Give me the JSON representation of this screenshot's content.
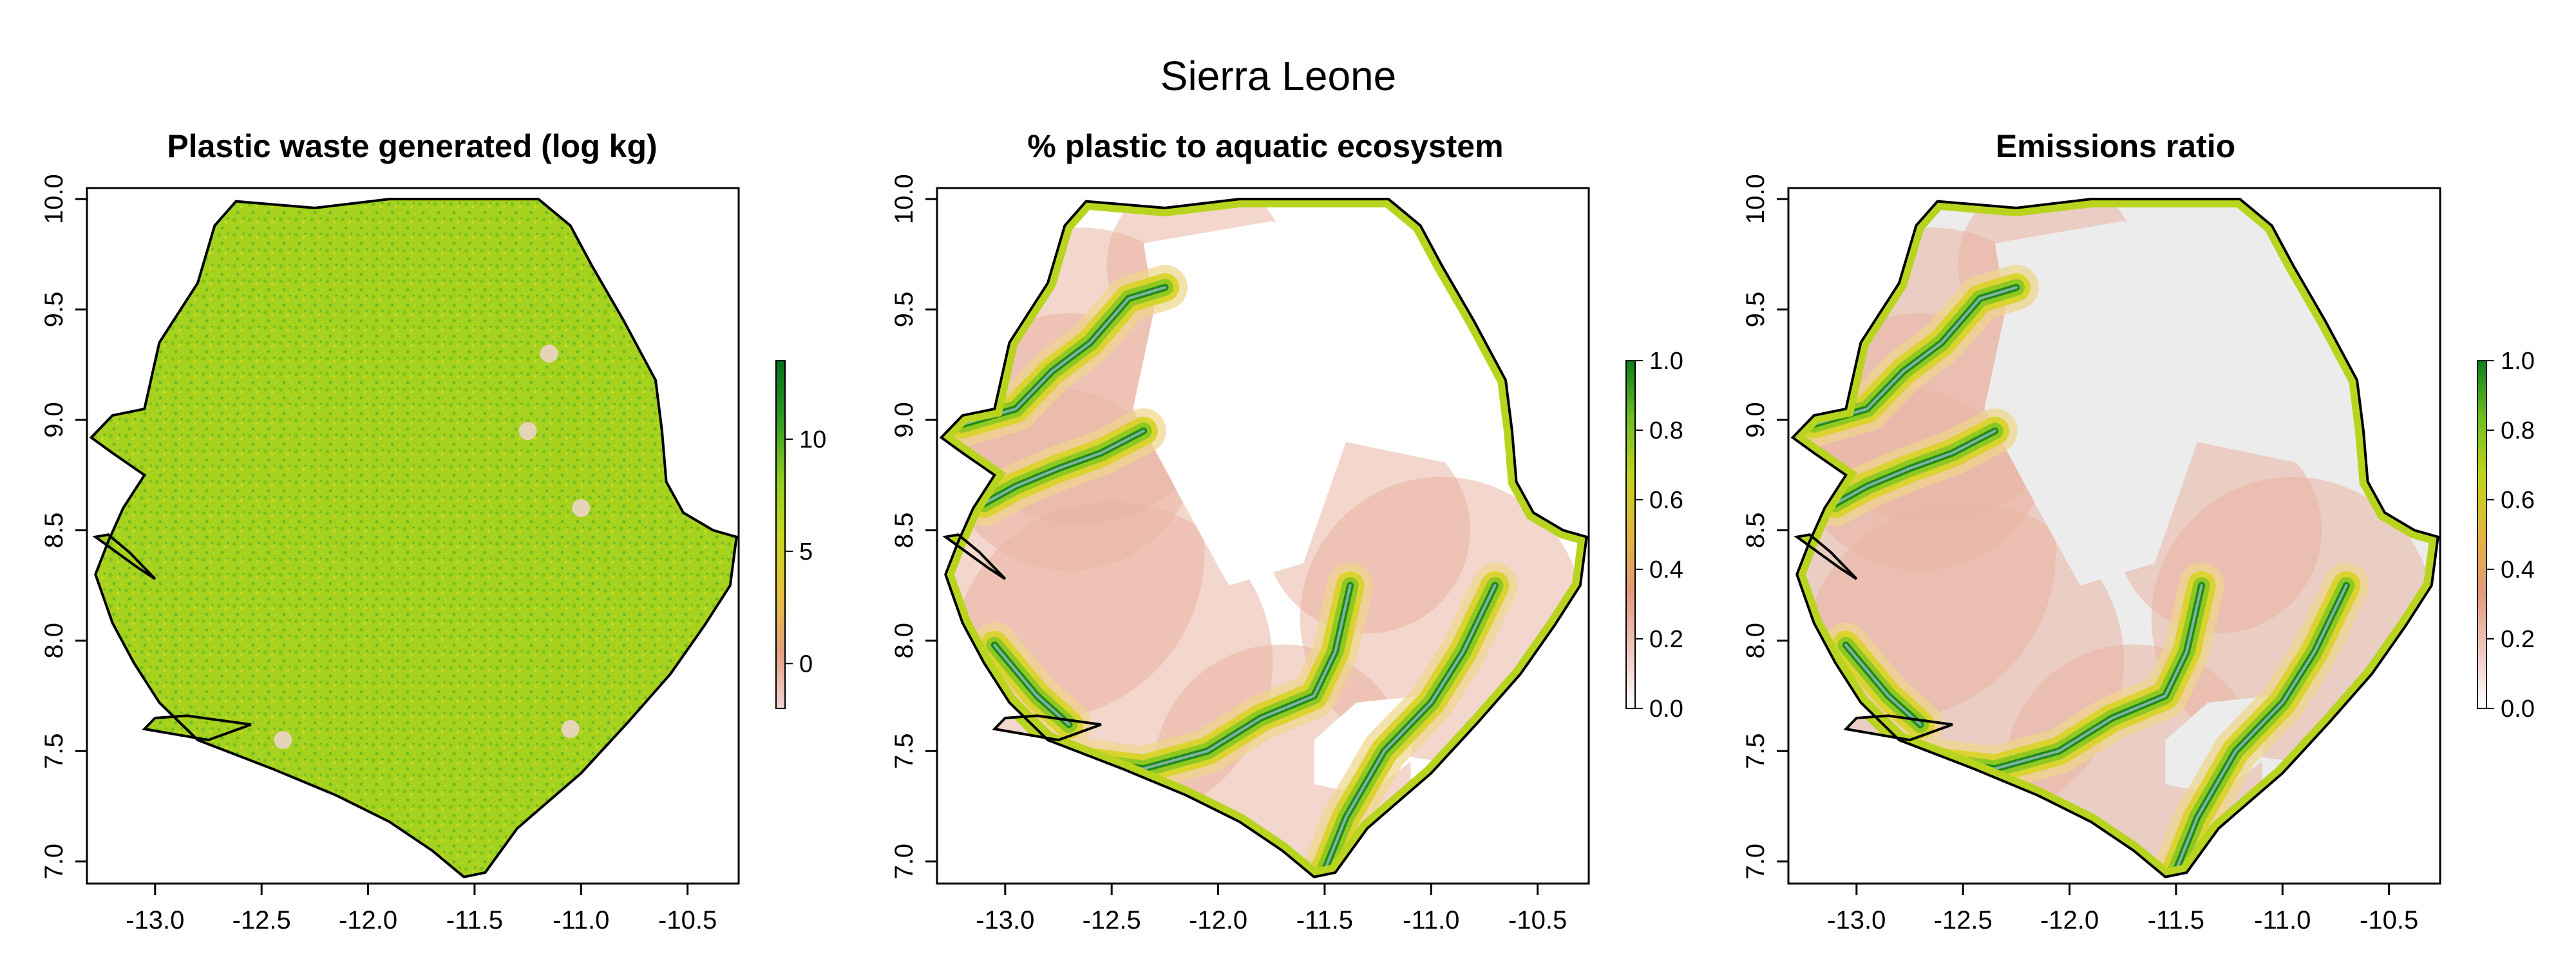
{
  "figure": {
    "title": "Sierra Leone"
  },
  "panels": [
    {
      "title": "Plastic waste generated (log kg)",
      "legend": {
        "ticks": [
          "10",
          "5",
          "0"
        ],
        "tick_values": [
          10,
          5,
          0
        ],
        "range": [
          -2,
          13.5
        ],
        "colors": [
          "#f3d4d3",
          "#e4a07f",
          "#e6c23a",
          "#c7d81e",
          "#8ccc1f",
          "#2f9a22",
          "#056f1a"
        ]
      },
      "x_ticks": [
        "-13.0",
        "-12.5",
        "-12.0",
        "-11.5",
        "-11.0",
        "-10.5"
      ],
      "y_ticks": [
        "7.0",
        "7.5",
        "8.0",
        "8.5",
        "9.0",
        "9.5",
        "10.0"
      ],
      "fill_style": "dense-green"
    },
    {
      "title": "% plastic to aquatic ecosystem",
      "legend": {
        "ticks": [
          "1.0",
          "0.8",
          "0.6",
          "0.4",
          "0.2",
          "0.0"
        ],
        "tick_values": [
          1.0,
          0.8,
          0.6,
          0.4,
          0.2,
          0.0
        ],
        "range": [
          0,
          1
        ],
        "colors": [
          "#ffffff",
          "#f0c8c0",
          "#e29a7b",
          "#e2b63c",
          "#c3d31e",
          "#6fbf20",
          "#0b7f1b"
        ]
      },
      "x_ticks": [
        "-13.0",
        "-12.5",
        "-12.0",
        "-11.5",
        "-11.0",
        "-10.5"
      ],
      "y_ticks": [
        "7.0",
        "7.5",
        "8.0",
        "8.5",
        "9.0",
        "9.5",
        "10.0"
      ],
      "fill_style": "river-white"
    },
    {
      "title": "Emissions ratio",
      "legend": {
        "ticks": [
          "1.0",
          "0.8",
          "0.6",
          "0.4",
          "0.2",
          "0.0"
        ],
        "tick_values": [
          1.0,
          0.8,
          0.6,
          0.4,
          0.2,
          0.0
        ],
        "range": [
          0,
          1
        ],
        "colors": [
          "#ffffff",
          "#f0c8c0",
          "#e29a7b",
          "#e2b63c",
          "#c3d31e",
          "#6fbf20",
          "#0b7f1b"
        ]
      },
      "x_ticks": [
        "-13.0",
        "-12.5",
        "-12.0",
        "-11.5",
        "-11.0",
        "-10.5"
      ],
      "y_ticks": [
        "7.0",
        "7.5",
        "8.0",
        "8.5",
        "9.0",
        "9.5",
        "10.0"
      ],
      "fill_style": "river-grey"
    }
  ],
  "map_extent": {
    "lon": [
      -13.32,
      -10.26
    ],
    "lat": [
      6.9,
      10.05
    ]
  },
  "boundary_lonlat": [
    [
      -13.05,
      9.05
    ],
    [
      -12.98,
      9.35
    ],
    [
      -12.8,
      9.62
    ],
    [
      -12.72,
      9.88
    ],
    [
      -12.62,
      9.99
    ],
    [
      -12.25,
      9.96
    ],
    [
      -11.9,
      10.0
    ],
    [
      -11.2,
      10.0
    ],
    [
      -11.05,
      9.88
    ],
    [
      -10.95,
      9.7
    ],
    [
      -10.8,
      9.45
    ],
    [
      -10.65,
      9.18
    ],
    [
      -10.62,
      8.95
    ],
    [
      -10.6,
      8.72
    ],
    [
      -10.52,
      8.58
    ],
    [
      -10.38,
      8.5
    ],
    [
      -10.27,
      8.47
    ],
    [
      -10.3,
      8.25
    ],
    [
      -10.42,
      8.07
    ],
    [
      -10.58,
      7.85
    ],
    [
      -10.78,
      7.63
    ],
    [
      -11.0,
      7.4
    ],
    [
      -11.3,
      7.15
    ],
    [
      -11.45,
      6.95
    ],
    [
      -11.55,
      6.93
    ],
    [
      -11.7,
      7.05
    ],
    [
      -11.9,
      7.18
    ],
    [
      -12.15,
      7.3
    ],
    [
      -12.45,
      7.42
    ],
    [
      -12.8,
      7.55
    ],
    [
      -12.98,
      7.72
    ],
    [
      -13.1,
      7.9
    ],
    [
      -13.2,
      8.08
    ],
    [
      -13.28,
      8.3
    ],
    [
      -13.22,
      8.45
    ],
    [
      -13.15,
      8.6
    ],
    [
      -13.05,
      8.75
    ],
    [
      -13.2,
      8.85
    ],
    [
      -13.3,
      8.92
    ],
    [
      -13.2,
      9.02
    ]
  ],
  "islands_lonlat": [
    [
      [
        -13.28,
        8.47
      ],
      [
        -13.08,
        8.33
      ],
      [
        -13.0,
        8.28
      ],
      [
        -13.12,
        8.4
      ],
      [
        -13.22,
        8.48
      ]
    ],
    [
      [
        -13.05,
        7.6
      ],
      [
        -12.75,
        7.55
      ],
      [
        -12.55,
        7.62
      ],
      [
        -12.85,
        7.66
      ],
      [
        -13.0,
        7.65
      ]
    ]
  ],
  "rivers_lonlat": [
    [
      [
        -13.2,
        8.98
      ],
      [
        -12.95,
        9.05
      ],
      [
        -12.78,
        9.22
      ],
      [
        -12.6,
        9.35
      ],
      [
        -12.42,
        9.55
      ],
      [
        -12.25,
        9.6
      ]
    ],
    [
      [
        -13.1,
        8.62
      ],
      [
        -12.95,
        8.7
      ],
      [
        -12.75,
        8.78
      ],
      [
        -12.55,
        8.85
      ],
      [
        -12.35,
        8.95
      ]
    ],
    [
      [
        -12.6,
        7.45
      ],
      [
        -12.35,
        7.42
      ],
      [
        -12.05,
        7.5
      ],
      [
        -11.8,
        7.65
      ],
      [
        -11.55,
        7.75
      ],
      [
        -11.45,
        7.95
      ],
      [
        -11.38,
        8.25
      ]
    ],
    [
      [
        -11.5,
        6.96
      ],
      [
        -11.4,
        7.2
      ],
      [
        -11.22,
        7.5
      ],
      [
        -11.0,
        7.72
      ],
      [
        -10.85,
        7.95
      ],
      [
        -10.7,
        8.25
      ]
    ],
    [
      [
        -13.05,
        7.98
      ],
      [
        -12.85,
        7.75
      ],
      [
        -12.7,
        7.62
      ]
    ]
  ],
  "white_patches_lonlat": [
    [
      [
        -12.35,
        9.8
      ],
      [
        -11.75,
        9.9
      ],
      [
        -11.1,
        9.7
      ],
      [
        -10.9,
        9.3
      ],
      [
        -10.9,
        8.8
      ],
      [
        -11.4,
        8.9
      ],
      [
        -11.6,
        8.35
      ],
      [
        -11.95,
        8.25
      ],
      [
        -12.15,
        8.6
      ],
      [
        -12.4,
        9.05
      ],
      [
        -12.3,
        9.5
      ]
    ],
    [
      [
        -11.35,
        7.72
      ],
      [
        -11.05,
        7.75
      ],
      [
        -11.1,
        7.45
      ],
      [
        -11.3,
        7.3
      ],
      [
        -11.55,
        7.35
      ],
      [
        -11.55,
        7.55
      ]
    ]
  ]
}
